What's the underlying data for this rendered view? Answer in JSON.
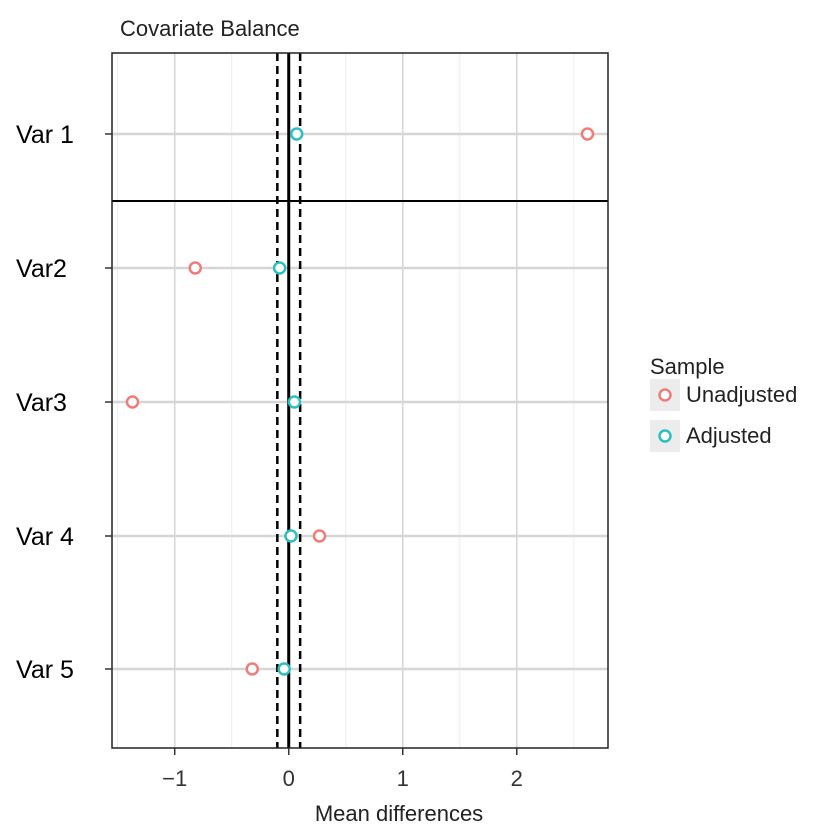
{
  "chart_data": {
    "type": "scatter",
    "title": "Covariate Balance",
    "xlabel": "Mean differences",
    "ylabel": "",
    "categories": [
      "Var 1",
      "Var2",
      "Var3",
      "Var 4",
      "Var 5"
    ],
    "xlim": [
      -1.55,
      2.8
    ],
    "xticks": [
      -1,
      0,
      1,
      2
    ],
    "xtick_labels": [
      "−1",
      "0",
      "1",
      "2"
    ],
    "reference_lines": {
      "solid": 0,
      "dashed": [
        -0.1,
        0.1
      ]
    },
    "separator_after_category": "Var 1",
    "series": [
      {
        "name": "Unadjusted",
        "color": "#ee7d77",
        "values": [
          2.62,
          -0.82,
          -1.37,
          0.27,
          -0.32
        ]
      },
      {
        "name": "Adjusted",
        "color": "#2ebfbf",
        "values": [
          0.07,
          -0.08,
          0.05,
          0.02,
          -0.04
        ]
      }
    ],
    "legend": {
      "title": "Sample",
      "placement": "right"
    },
    "grid": true
  }
}
